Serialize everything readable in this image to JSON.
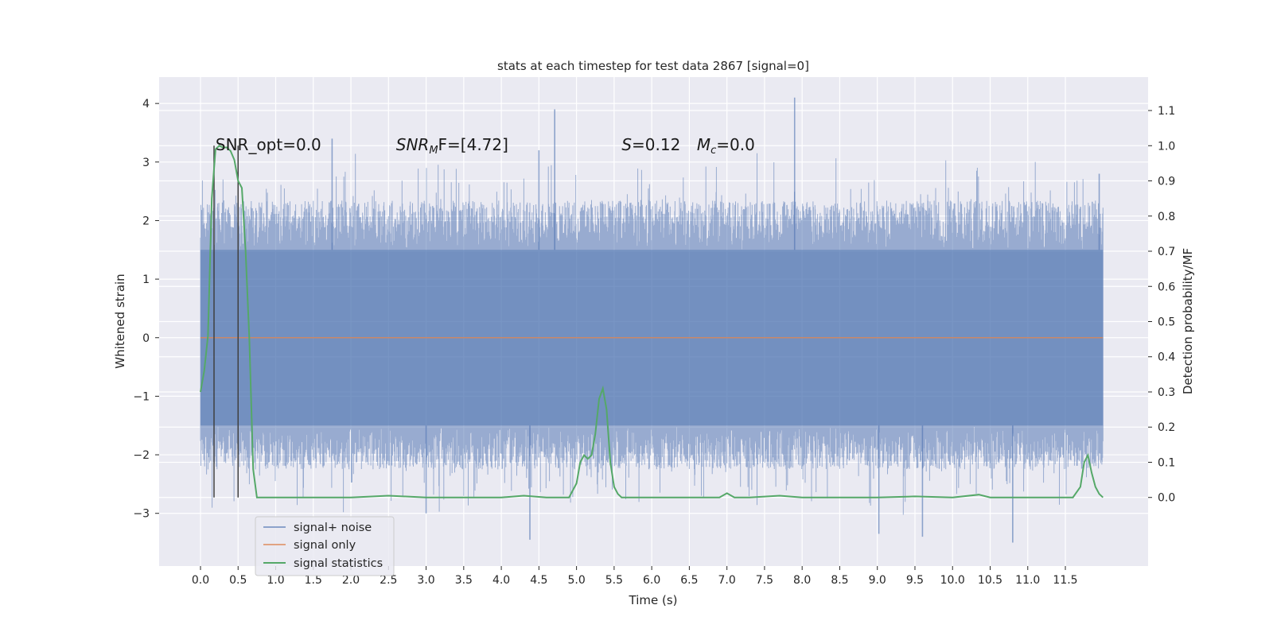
{
  "chart_data": {
    "type": "line",
    "title": "stats at each timestep for test data 2867 [signal=0]",
    "xlabel": "Time (s)",
    "ylabel": "Whitened strain",
    "y2label": "Detection probability/MF",
    "xlim": [
      -0.55,
      12.6
    ],
    "ylim": [
      -3.9,
      4.45
    ],
    "y2lim": [
      -0.195,
      1.195
    ],
    "x_ticks": [
      "0.0",
      "0.5",
      "1.0",
      "1.5",
      "2.0",
      "2.5",
      "3.0",
      "3.5",
      "4.0",
      "4.5",
      "5.0",
      "5.5",
      "6.0",
      "6.5",
      "7.0",
      "7.5",
      "8.0",
      "8.5",
      "9.0",
      "9.5",
      "10.0",
      "10.5",
      "11.0",
      "11.5"
    ],
    "y_ticks": [
      "4",
      "3",
      "2",
      "1",
      "0",
      "−1",
      "−2",
      "−3"
    ],
    "y2_ticks": [
      "1.1",
      "1.0",
      "0.9",
      "0.8",
      "0.7",
      "0.6",
      "0.5",
      "0.4",
      "0.3",
      "0.2",
      "0.1",
      "0.0"
    ],
    "grid": true,
    "legend_placement": "lower-left",
    "background": "#eaeaf2",
    "series": [
      {
        "name": "signal+ noise",
        "axis": "left",
        "color": "#4c72b0",
        "x_range": [
          0.0,
          12.0
        ],
        "envelope": {
          "core_upper": 1.5,
          "core_lower": -1.5,
          "typical_upper_peaks": 2.2,
          "typical_lower_peaks": -2.2
        },
        "notable_peaks": [
          {
            "x": 4.71,
            "y": 3.9
          },
          {
            "x": 7.9,
            "y": 4.1
          },
          {
            "x": 4.5,
            "y": 3.2
          },
          {
            "x": 1.75,
            "y": 3.4
          },
          {
            "x": 4.38,
            "y": -3.45
          },
          {
            "x": 10.8,
            "y": -3.5
          },
          {
            "x": 9.02,
            "y": -3.35
          },
          {
            "x": 9.6,
            "y": -3.4
          },
          {
            "x": 3.0,
            "y": -3.0
          },
          {
            "x": 11.95,
            "y": 2.8
          }
        ]
      },
      {
        "name": "signal only",
        "axis": "left",
        "color": "#dd8452",
        "x": [
          0.0,
          12.0
        ],
        "y": [
          0.0,
          0.0
        ]
      },
      {
        "name": "signal statistics",
        "axis": "right",
        "color": "#55a868",
        "x": [
          0.0,
          0.05,
          0.1,
          0.15,
          0.2,
          0.25,
          0.3,
          0.35,
          0.4,
          0.45,
          0.5,
          0.55,
          0.6,
          0.65,
          0.7,
          0.75,
          0.8,
          1.0,
          2.0,
          2.5,
          3.0,
          4.0,
          4.3,
          4.6,
          4.9,
          5.0,
          5.05,
          5.1,
          5.15,
          5.2,
          5.25,
          5.3,
          5.35,
          5.4,
          5.45,
          5.5,
          5.55,
          5.6,
          5.7,
          6.0,
          6.9,
          7.0,
          7.1,
          7.3,
          7.7,
          8.0,
          9.0,
          9.5,
          10.0,
          10.35,
          10.5,
          11.0,
          11.6,
          11.7,
          11.75,
          11.8,
          11.85,
          11.9,
          11.95,
          12.0
        ],
        "y": [
          0.3,
          0.36,
          0.46,
          0.85,
          0.99,
          1.0,
          0.995,
          0.995,
          0.985,
          0.96,
          0.9,
          0.88,
          0.7,
          0.45,
          0.08,
          0.0,
          0.0,
          0.0,
          0.0,
          0.005,
          0.0,
          0.0,
          0.005,
          0.0,
          0.0,
          0.04,
          0.1,
          0.12,
          0.11,
          0.12,
          0.18,
          0.28,
          0.31,
          0.25,
          0.1,
          0.03,
          0.01,
          0.0,
          0.0,
          0.0,
          0.0,
          0.012,
          0.0,
          0.0,
          0.005,
          0.0,
          0.0,
          0.003,
          0.0,
          0.008,
          0.0,
          0.0,
          0.0,
          0.03,
          0.1,
          0.12,
          0.07,
          0.03,
          0.01,
          0.0
        ]
      }
    ],
    "vlines": [
      {
        "x": 0.18,
        "color": "#404040"
      },
      {
        "x": 0.5,
        "color": "#404040"
      }
    ],
    "annotations": [
      {
        "id": "snr_opt",
        "text": "SNR_opt=0.0",
        "x": 0.2
      },
      {
        "id": "snr_mf",
        "text": "SNR",
        "sub": "M",
        "tail": "F=[4.72]",
        "x": 2.6
      },
      {
        "id": "s_stat",
        "text": "S",
        "tail": "=0.12",
        "x": 5.6
      },
      {
        "id": "mc_stat",
        "text": "M",
        "sub": "c",
        "tail": "=0.0",
        "x": 6.6
      }
    ]
  }
}
